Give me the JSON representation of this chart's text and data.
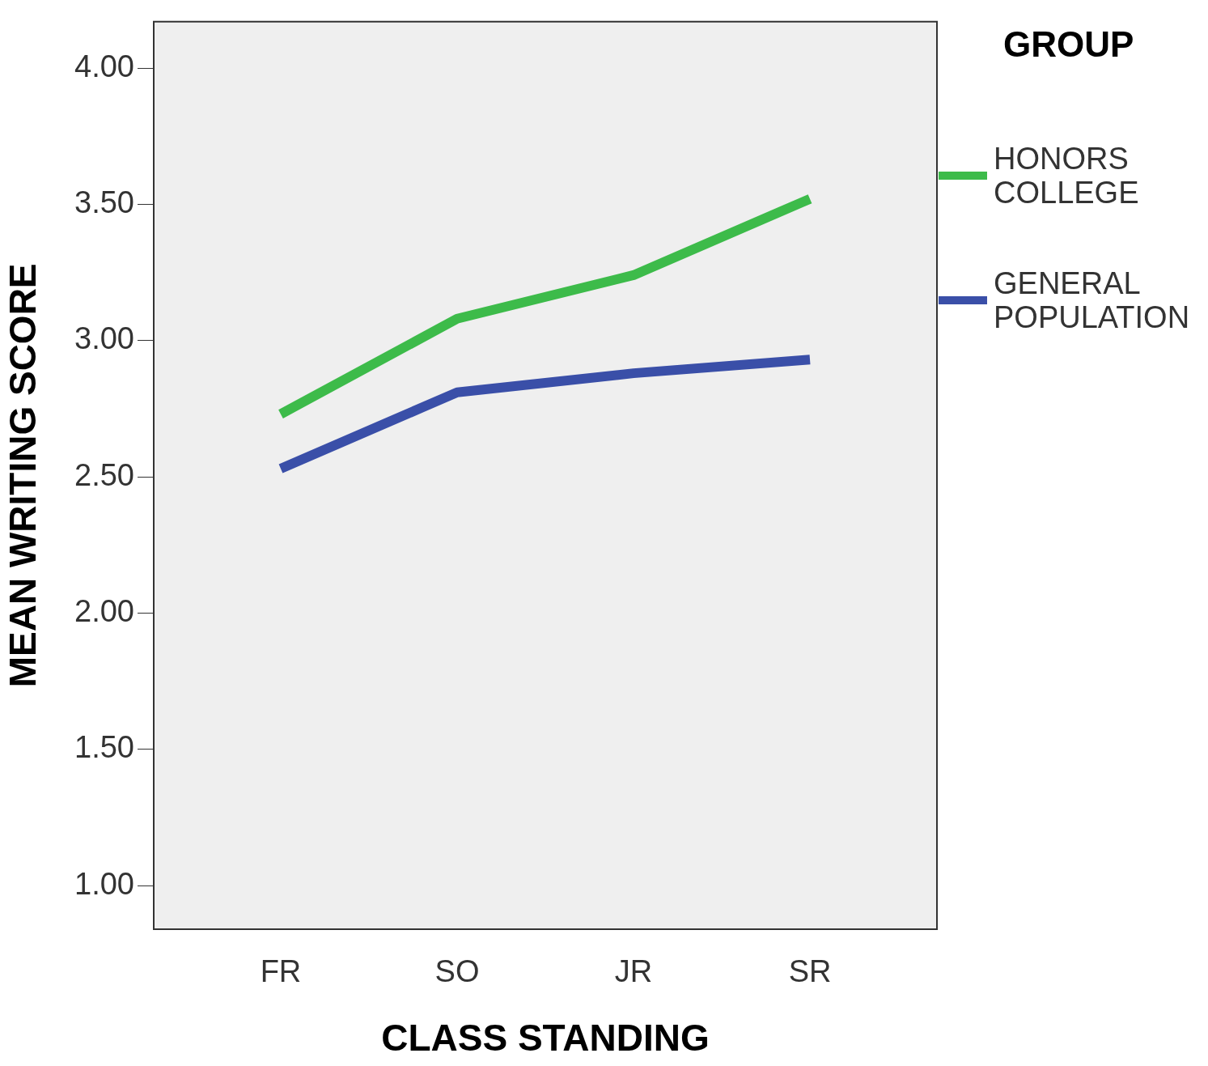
{
  "chart_data": {
    "type": "line",
    "xlabel": "CLASS STANDING",
    "ylabel": "MEAN WRITING SCORE",
    "legend_title": "GROUP",
    "categories": [
      "FR",
      "SO",
      "JR",
      "SR"
    ],
    "series": [
      {
        "name": "HONORS COLLEGE",
        "color": "#3dbb4a",
        "values": [
          2.73,
          3.08,
          3.24,
          3.52
        ]
      },
      {
        "name": "GENERAL POPULATION",
        "color": "#3a4fa8",
        "values": [
          2.53,
          2.81,
          2.88,
          2.93
        ]
      }
    ],
    "ylim": [
      0.84,
      4.17
    ],
    "yticks": [
      {
        "value": 1,
        "label": "1.00"
      },
      {
        "value": 1.5,
        "label": "1.50"
      },
      {
        "value": 2,
        "label": "2.00"
      },
      {
        "value": 2.5,
        "label": "2.50"
      },
      {
        "value": 3,
        "label": "3.00"
      },
      {
        "value": 3.5,
        "label": "3.50"
      },
      {
        "value": 4,
        "label": "4.00"
      }
    ],
    "grid": false,
    "legend": "right",
    "marker": "none",
    "line_style": "solid"
  }
}
